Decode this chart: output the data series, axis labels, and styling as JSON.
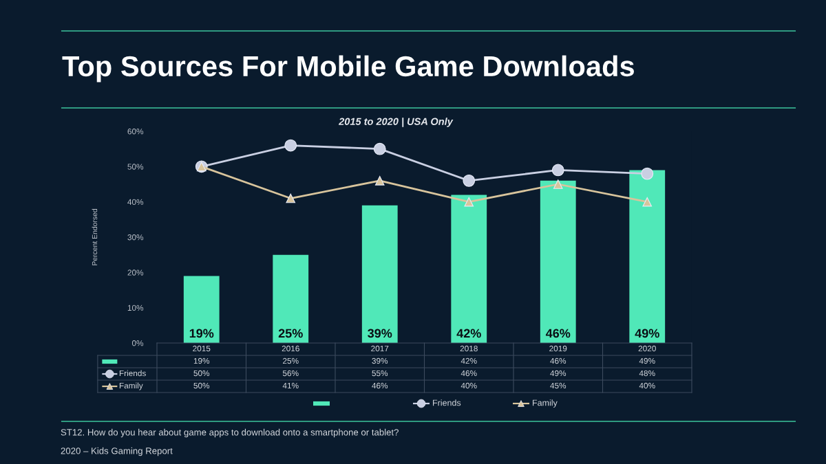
{
  "chart_data": {
    "type": "bar",
    "title": "Top Sources For Mobile Game Downloads",
    "subtitle": "2015 to 2020 | USA Only",
    "ylabel": "Percent Endorsed",
    "categories": [
      "2015",
      "2016",
      "2017",
      "2018",
      "2019",
      "2020"
    ],
    "series": [
      {
        "color": "#50e8b8",
        "values": [
          19,
          25,
          39,
          42,
          46,
          49
        ],
        "value_labels": [
          "19%",
          "25%",
          "39%",
          "42%",
          "46%",
          "49%"
        ]
      },
      {
        "name": "Friends",
        "type": "line",
        "color": "#c9cfe2",
        "marker": "circle",
        "line_style": "solid",
        "values": [
          50,
          56,
          55,
          46,
          49,
          48
        ],
        "value_labels": [
          "50%",
          "56%",
          "55%",
          "46%",
          "49%",
          "48%"
        ]
      },
      {
        "name": "Family",
        "type": "line",
        "color": "#d8c49c",
        "marker": "triangle",
        "line_style": "solid",
        "values": [
          50,
          41,
          46,
          40,
          45,
          40
        ],
        "value_labels": [
          "50%",
          "41%",
          "46%",
          "40%",
          "45%",
          "40%"
        ]
      }
    ],
    "ylim": [
      0,
      60
    ],
    "yticks": [
      {
        "value": 0,
        "label": "0%"
      },
      {
        "value": 10,
        "label": "10%"
      },
      {
        "value": 20,
        "label": "20%"
      },
      {
        "value": 30,
        "label": "30%"
      },
      {
        "value": 40,
        "label": "40%"
      },
      {
        "value": 50,
        "label": "50%"
      },
      {
        "value": 60,
        "label": "60%"
      }
    ],
    "legend": "bottom",
    "annotations": [
      "ST12. How do you hear about game apps to download onto a smartphone or tablet?",
      "2020 – Kids Gaming Report"
    ]
  }
}
